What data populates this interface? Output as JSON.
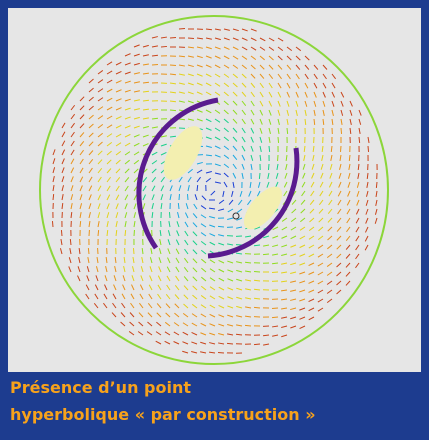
{
  "caption": {
    "lines": [
      "Présence d’un point",
      "hyperbolique « par construction »"
    ]
  }
}
